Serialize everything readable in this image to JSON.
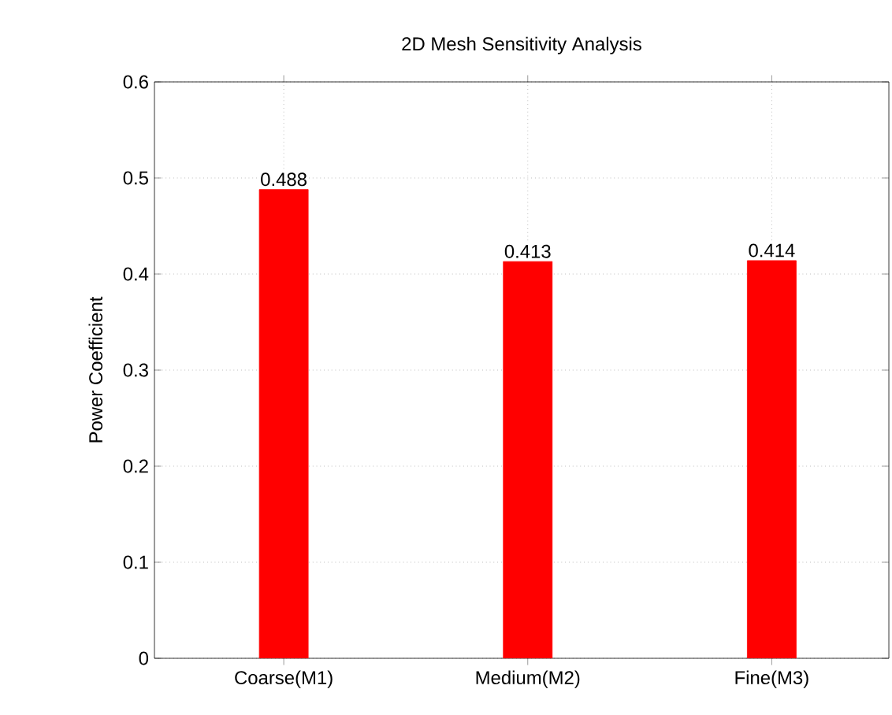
{
  "chart_data": {
    "type": "bar",
    "title": "2D Mesh Sensitivity Analysis",
    "ylabel": "Power Coefficient",
    "categories": [
      "Coarse(M1)",
      "Medium(M2)",
      "Fine(M3)"
    ],
    "values": [
      0.488,
      0.413,
      0.414
    ],
    "color": "#ff0000",
    "ylim": [
      0,
      0.6
    ],
    "yticks": [
      0,
      0.1,
      0.2,
      0.3,
      0.4,
      0.5,
      0.6
    ],
    "grid": true,
    "data_labels": true
  }
}
